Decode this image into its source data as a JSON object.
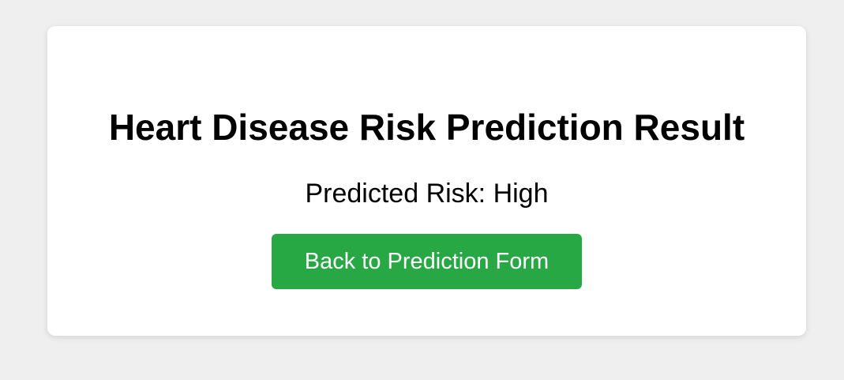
{
  "result": {
    "title": "Heart Disease Risk Prediction Result",
    "predicted_risk": "Predicted Risk: High",
    "back_button_label": "Back to Prediction Form"
  },
  "colors": {
    "background": "#efefef",
    "card": "#ffffff",
    "button": "#28a745",
    "button_text": "#ffffff",
    "text": "#000000"
  }
}
